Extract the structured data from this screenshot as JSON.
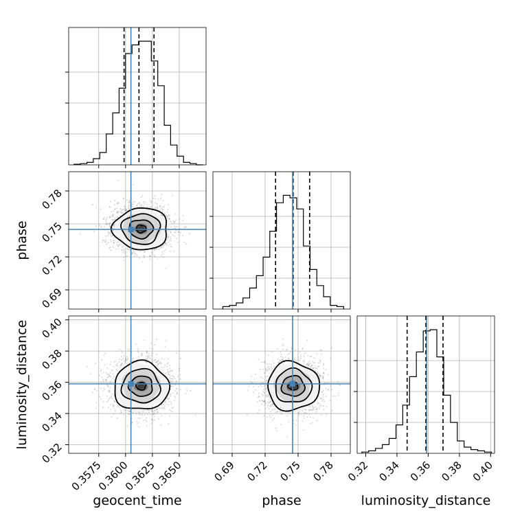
{
  "chart_data": {
    "type": "corner",
    "parameters": [
      "geocent_time",
      "phase",
      "luminosity_distance"
    ],
    "truths": {
      "geocent_time": 0.3605,
      "phase": 0.745,
      "luminosity_distance": 0.359
    },
    "colors": {
      "truth": "#4682b4",
      "hist": "#000000",
      "grid": "#b0b0b0"
    },
    "axes": {
      "geocent_time": {
        "range": [
          0.3547,
          0.3675
        ],
        "ticks": [
          0.3575,
          0.36,
          0.3625,
          0.365
        ],
        "tick_labels": [
          "0.3575",
          "0.3600",
          "0.3625",
          "0.3650"
        ],
        "quantiles": [
          0.35986,
          0.36125,
          0.36265
        ],
        "hist": [
          0.005,
          0.01,
          0.02,
          0.05,
          0.1,
          0.25,
          0.42,
          0.62,
          0.9,
          0.97,
          1.0,
          1.0,
          0.84,
          0.64,
          0.32,
          0.16,
          0.07,
          0.02,
          0.01,
          0.0
        ],
        "hist_range": [
          0.3552,
          0.3672
        ]
      },
      "phase": {
        "range": [
          0.6725,
          0.7975
        ],
        "ticks": [
          0.69,
          0.72,
          0.75,
          0.78
        ],
        "tick_labels": [
          "0.69",
          "0.72",
          "0.75",
          "0.78"
        ],
        "quantiles": [
          0.7295,
          0.7455,
          0.7605
        ],
        "hist": [
          0.02,
          0.03,
          0.05,
          0.09,
          0.17,
          0.27,
          0.42,
          0.63,
          0.86,
          0.92,
          0.9,
          0.81,
          0.51,
          0.32,
          0.19,
          0.1,
          0.03,
          0.02
        ],
        "hist_range": [
          0.6815,
          0.7915
        ]
      },
      "luminosity_distance": {
        "range": [
          0.3145,
          0.4025
        ],
        "ticks": [
          0.32,
          0.34,
          0.36,
          0.38,
          0.4
        ],
        "tick_labels": [
          "0.32",
          "0.34",
          "0.36",
          "0.38",
          "0.40"
        ],
        "quantiles": [
          0.3465,
          0.3585,
          0.3695
        ],
        "hist": [
          0.01,
          0.02,
          0.04,
          0.07,
          0.12,
          0.23,
          0.39,
          0.62,
          0.82,
          0.99,
          1.0,
          0.78,
          0.47,
          0.25,
          0.1,
          0.05,
          0.03,
          0.02,
          0.01
        ],
        "hist_range": [
          0.3175,
          0.4005
        ]
      }
    },
    "contours": {
      "geocent_time__phase": {
        "center": [
          0.36145,
          0.7455
        ],
        "radii": [
          [
            0.00045,
            0.0035
          ],
          [
            0.0011,
            0.0085
          ],
          [
            0.00178,
            0.0138
          ],
          [
            0.00255,
            0.019
          ]
        ]
      },
      "geocent_time__luminosity_distance": {
        "center": [
          0.36145,
          0.3575
        ],
        "radii": [
          [
            0.00045,
            0.0024
          ],
          [
            0.0011,
            0.0065
          ],
          [
            0.00178,
            0.0108
          ],
          [
            0.00255,
            0.0155
          ]
        ]
      },
      "phase__luminosity_distance": {
        "center": [
          0.7455,
          0.3575
        ],
        "radii": [
          [
            0.0045,
            0.0024
          ],
          [
            0.0105,
            0.0065
          ],
          [
            0.0165,
            0.0108
          ],
          [
            0.0235,
            0.0155
          ]
        ]
      }
    },
    "grid": true,
    "title": ""
  }
}
